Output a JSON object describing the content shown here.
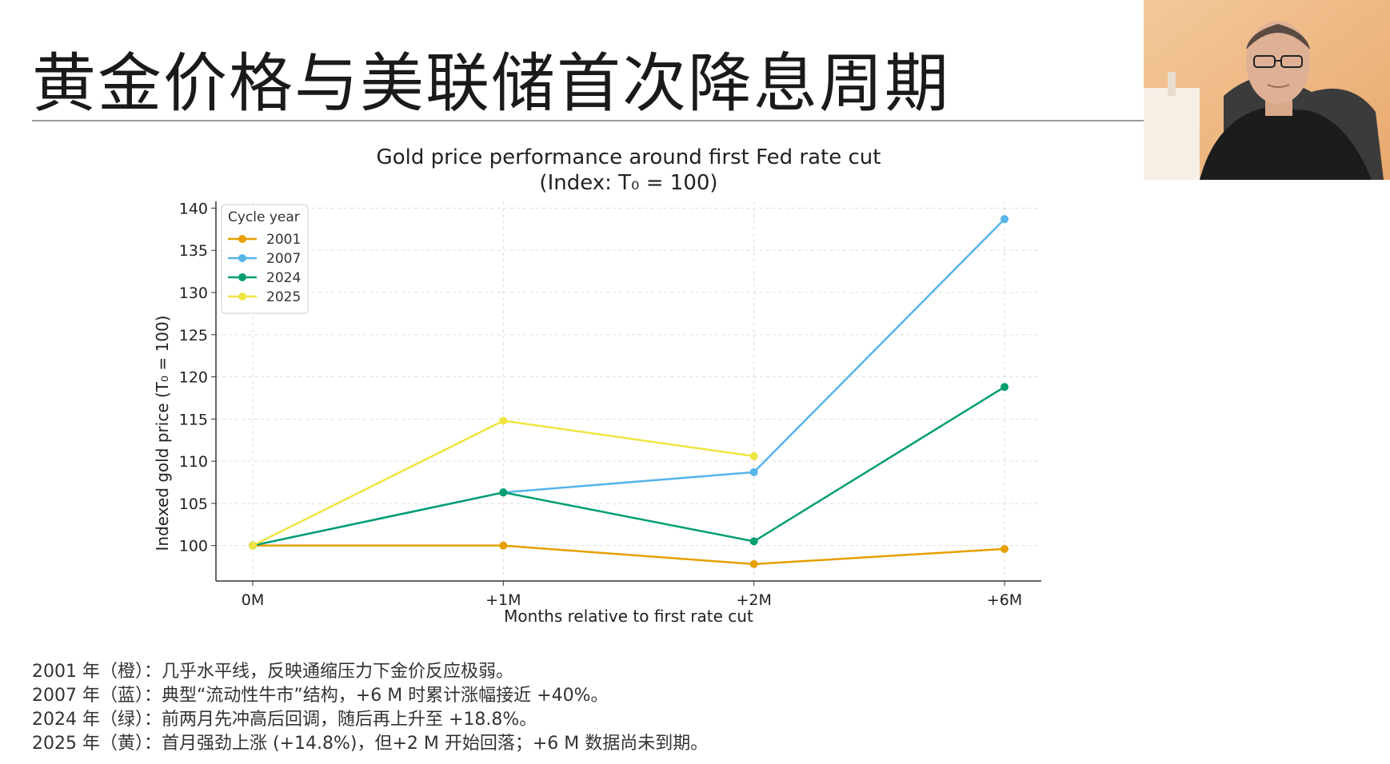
{
  "slide": {
    "title": "黄金价格与美联储首次降息周期"
  },
  "chart_data": {
    "type": "line",
    "title": "Gold price performance around first Fed rate cut",
    "subtitle": "(Index: T₀ = 100)",
    "xlabel": "Months relative to first rate cut",
    "ylabel": "Indexed gold price (T₀ = 100)",
    "categories": [
      "0M",
      "+1M",
      "+2M",
      "+6M"
    ],
    "y_ticks": [
      100,
      105,
      110,
      115,
      120,
      125,
      130,
      135,
      140
    ],
    "ylim": [
      95.8,
      140.8
    ],
    "grid": true,
    "legend_position": "top-left",
    "legend_title": "Cycle year",
    "series": [
      {
        "name": "2001",
        "color": "#E69F00",
        "values": [
          100,
          100,
          97.8,
          99.6
        ]
      },
      {
        "name": "2007",
        "color": "#56B4E9",
        "values": [
          100,
          106.3,
          108.7,
          138.7
        ]
      },
      {
        "name": "2024",
        "color": "#009E73",
        "values": [
          100,
          106.3,
          100.5,
          118.8
        ]
      },
      {
        "name": "2025",
        "color": "#F0E442",
        "values": [
          100,
          114.8,
          110.6,
          null
        ]
      }
    ]
  },
  "notes": [
    "2001 年（橙）：几乎水平线，反映通缩压力下金价反应极弱。",
    "2007 年（蓝）：典型“流动性牛市”结构，+6 M 时累计涨幅接近 +40%。",
    "2024 年（绿）：前两月先冲高后回调，随后再上升至 +18.8%。",
    "2025 年（黄）：首月强劲上涨 (+14.8%)，但+2 M 开始回落；+6 M 数据尚未到期。"
  ],
  "colors": {
    "axis": "#333333",
    "grid": "#dddddd",
    "title_rule": "#9a9a9a"
  }
}
